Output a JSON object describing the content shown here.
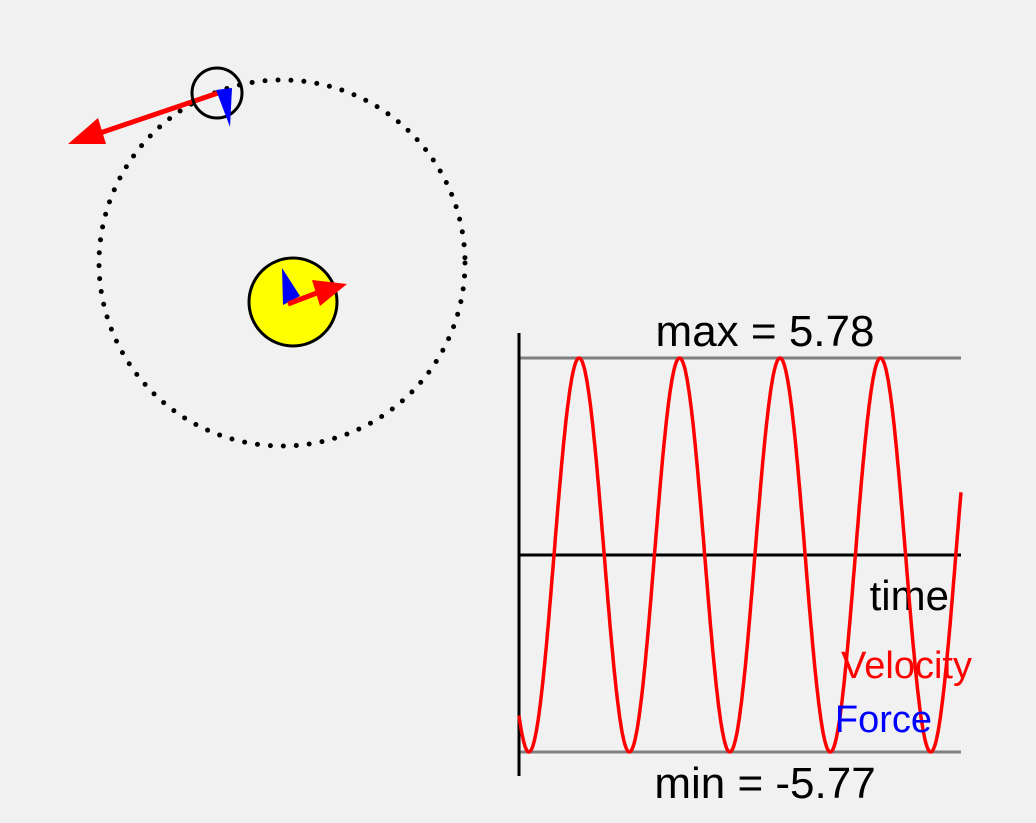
{
  "colors": {
    "background": "#f1f1f1",
    "velocity": "#ff0000",
    "force": "#0000ff",
    "star_fill": "#ffff00",
    "outline": "#000000",
    "reference_line": "#808080"
  },
  "labels": {
    "max": "max = 5.78",
    "min": "min = -5.77",
    "time_axis": "time",
    "legend_velocity": "Velocity",
    "legend_force": "Force"
  },
  "chart_data": {
    "type": "line",
    "x_axis_label": "time",
    "max": 5.78,
    "min": -5.77,
    "series": [
      {
        "name": "Velocity",
        "color": "#ff0000",
        "cycles": 4.4,
        "start_value": -4.7,
        "end_value": 1.9
      },
      {
        "name": "Force",
        "color": "#0000ff"
      }
    ],
    "legend": [
      "Velocity",
      "Force"
    ],
    "legend_position": "bottom-right"
  },
  "diagram": {
    "central_body": {
      "fill": "#ffff00",
      "velocity_arrow": "small",
      "force_arrow": "small"
    },
    "orbiting_body": {
      "fill": "none",
      "velocity_arrow": "large",
      "force_arrow": "small"
    },
    "orbit_path": "dotted-circle"
  }
}
